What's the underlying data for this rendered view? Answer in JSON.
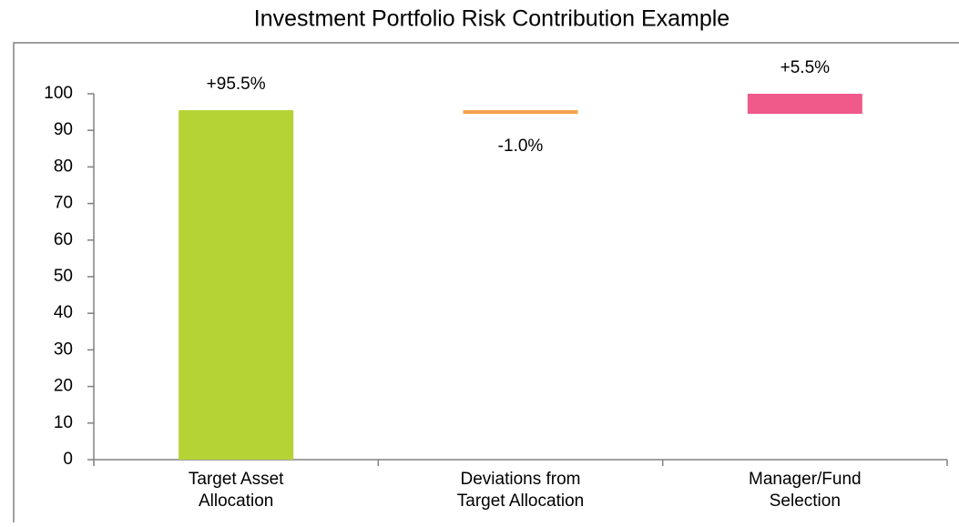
{
  "chart_data": {
    "type": "waterfall",
    "title": "Investment Portfolio Risk Contribution Example",
    "categories": [
      "Target Asset\nAllocation",
      "Deviations from\nTarget Allocation",
      "Manager/Fund\nSelection"
    ],
    "values": [
      95.5,
      -1.0,
      5.5
    ],
    "value_labels": [
      "+95.5%",
      "-1.0%",
      "+5.5%"
    ],
    "colors": [
      "#b5d334",
      "#f4a14b",
      "#ef5a8a"
    ],
    "ylim": [
      0,
      100
    ],
    "yticks": [
      0,
      10,
      20,
      30,
      40,
      50,
      60,
      70,
      80,
      90,
      100
    ],
    "grid": false
  }
}
